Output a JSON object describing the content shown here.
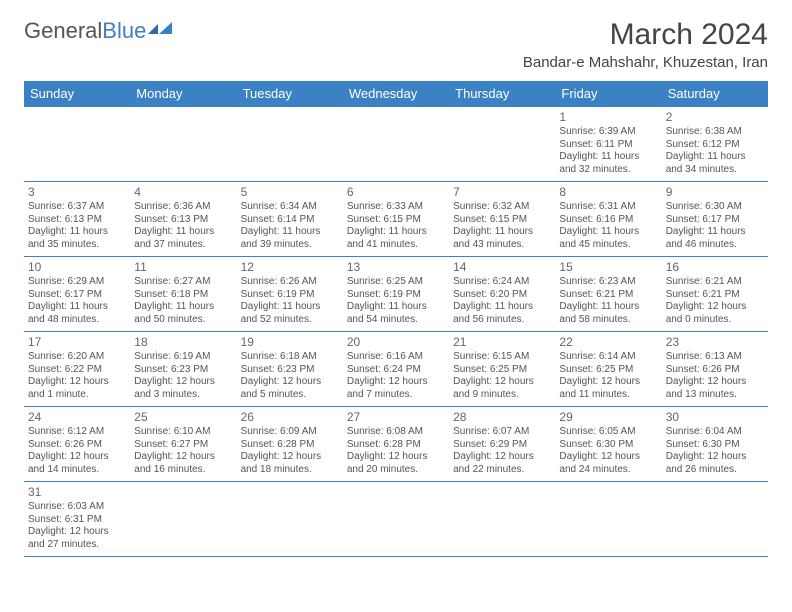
{
  "logo": {
    "text1": "General",
    "text2": "Blue"
  },
  "title": "March 2024",
  "location": "Bandar-e Mahshahr, Khuzestan, Iran",
  "colors": {
    "header_bg": "#3b82c4",
    "header_fg": "#ffffff",
    "border": "#3b82c4",
    "logo_blue": "#3b7fc4"
  },
  "day_headers": [
    "Sunday",
    "Monday",
    "Tuesday",
    "Wednesday",
    "Thursday",
    "Friday",
    "Saturday"
  ],
  "weeks": [
    [
      null,
      null,
      null,
      null,
      null,
      {
        "n": "1",
        "sr": "Sunrise: 6:39 AM",
        "ss": "Sunset: 6:11 PM",
        "dl": "Daylight: 11 hours and 32 minutes."
      },
      {
        "n": "2",
        "sr": "Sunrise: 6:38 AM",
        "ss": "Sunset: 6:12 PM",
        "dl": "Daylight: 11 hours and 34 minutes."
      }
    ],
    [
      {
        "n": "3",
        "sr": "Sunrise: 6:37 AM",
        "ss": "Sunset: 6:13 PM",
        "dl": "Daylight: 11 hours and 35 minutes."
      },
      {
        "n": "4",
        "sr": "Sunrise: 6:36 AM",
        "ss": "Sunset: 6:13 PM",
        "dl": "Daylight: 11 hours and 37 minutes."
      },
      {
        "n": "5",
        "sr": "Sunrise: 6:34 AM",
        "ss": "Sunset: 6:14 PM",
        "dl": "Daylight: 11 hours and 39 minutes."
      },
      {
        "n": "6",
        "sr": "Sunrise: 6:33 AM",
        "ss": "Sunset: 6:15 PM",
        "dl": "Daylight: 11 hours and 41 minutes."
      },
      {
        "n": "7",
        "sr": "Sunrise: 6:32 AM",
        "ss": "Sunset: 6:15 PM",
        "dl": "Daylight: 11 hours and 43 minutes."
      },
      {
        "n": "8",
        "sr": "Sunrise: 6:31 AM",
        "ss": "Sunset: 6:16 PM",
        "dl": "Daylight: 11 hours and 45 minutes."
      },
      {
        "n": "9",
        "sr": "Sunrise: 6:30 AM",
        "ss": "Sunset: 6:17 PM",
        "dl": "Daylight: 11 hours and 46 minutes."
      }
    ],
    [
      {
        "n": "10",
        "sr": "Sunrise: 6:29 AM",
        "ss": "Sunset: 6:17 PM",
        "dl": "Daylight: 11 hours and 48 minutes."
      },
      {
        "n": "11",
        "sr": "Sunrise: 6:27 AM",
        "ss": "Sunset: 6:18 PM",
        "dl": "Daylight: 11 hours and 50 minutes."
      },
      {
        "n": "12",
        "sr": "Sunrise: 6:26 AM",
        "ss": "Sunset: 6:19 PM",
        "dl": "Daylight: 11 hours and 52 minutes."
      },
      {
        "n": "13",
        "sr": "Sunrise: 6:25 AM",
        "ss": "Sunset: 6:19 PM",
        "dl": "Daylight: 11 hours and 54 minutes."
      },
      {
        "n": "14",
        "sr": "Sunrise: 6:24 AM",
        "ss": "Sunset: 6:20 PM",
        "dl": "Daylight: 11 hours and 56 minutes."
      },
      {
        "n": "15",
        "sr": "Sunrise: 6:23 AM",
        "ss": "Sunset: 6:21 PM",
        "dl": "Daylight: 11 hours and 58 minutes."
      },
      {
        "n": "16",
        "sr": "Sunrise: 6:21 AM",
        "ss": "Sunset: 6:21 PM",
        "dl": "Daylight: 12 hours and 0 minutes."
      }
    ],
    [
      {
        "n": "17",
        "sr": "Sunrise: 6:20 AM",
        "ss": "Sunset: 6:22 PM",
        "dl": "Daylight: 12 hours and 1 minute."
      },
      {
        "n": "18",
        "sr": "Sunrise: 6:19 AM",
        "ss": "Sunset: 6:23 PM",
        "dl": "Daylight: 12 hours and 3 minutes."
      },
      {
        "n": "19",
        "sr": "Sunrise: 6:18 AM",
        "ss": "Sunset: 6:23 PM",
        "dl": "Daylight: 12 hours and 5 minutes."
      },
      {
        "n": "20",
        "sr": "Sunrise: 6:16 AM",
        "ss": "Sunset: 6:24 PM",
        "dl": "Daylight: 12 hours and 7 minutes."
      },
      {
        "n": "21",
        "sr": "Sunrise: 6:15 AM",
        "ss": "Sunset: 6:25 PM",
        "dl": "Daylight: 12 hours and 9 minutes."
      },
      {
        "n": "22",
        "sr": "Sunrise: 6:14 AM",
        "ss": "Sunset: 6:25 PM",
        "dl": "Daylight: 12 hours and 11 minutes."
      },
      {
        "n": "23",
        "sr": "Sunrise: 6:13 AM",
        "ss": "Sunset: 6:26 PM",
        "dl": "Daylight: 12 hours and 13 minutes."
      }
    ],
    [
      {
        "n": "24",
        "sr": "Sunrise: 6:12 AM",
        "ss": "Sunset: 6:26 PM",
        "dl": "Daylight: 12 hours and 14 minutes."
      },
      {
        "n": "25",
        "sr": "Sunrise: 6:10 AM",
        "ss": "Sunset: 6:27 PM",
        "dl": "Daylight: 12 hours and 16 minutes."
      },
      {
        "n": "26",
        "sr": "Sunrise: 6:09 AM",
        "ss": "Sunset: 6:28 PM",
        "dl": "Daylight: 12 hours and 18 minutes."
      },
      {
        "n": "27",
        "sr": "Sunrise: 6:08 AM",
        "ss": "Sunset: 6:28 PM",
        "dl": "Daylight: 12 hours and 20 minutes."
      },
      {
        "n": "28",
        "sr": "Sunrise: 6:07 AM",
        "ss": "Sunset: 6:29 PM",
        "dl": "Daylight: 12 hours and 22 minutes."
      },
      {
        "n": "29",
        "sr": "Sunrise: 6:05 AM",
        "ss": "Sunset: 6:30 PM",
        "dl": "Daylight: 12 hours and 24 minutes."
      },
      {
        "n": "30",
        "sr": "Sunrise: 6:04 AM",
        "ss": "Sunset: 6:30 PM",
        "dl": "Daylight: 12 hours and 26 minutes."
      }
    ],
    [
      {
        "n": "31",
        "sr": "Sunrise: 6:03 AM",
        "ss": "Sunset: 6:31 PM",
        "dl": "Daylight: 12 hours and 27 minutes."
      },
      null,
      null,
      null,
      null,
      null,
      null
    ]
  ]
}
